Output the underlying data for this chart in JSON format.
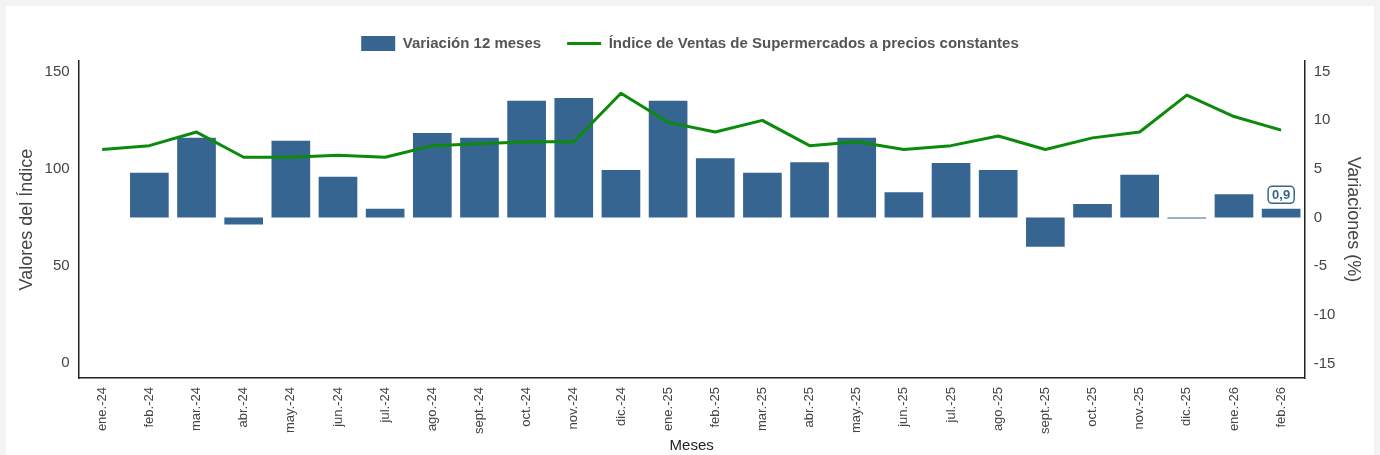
{
  "chart_data": {
    "type": "bar",
    "xlabel": "Meses",
    "ylabel": "Valores del Índice",
    "y2label": "Variaciones (%)",
    "categories": [
      "ene.-24",
      "feb.-24",
      "mar.-24",
      "abr.-24",
      "may.-24",
      "jun.-24",
      "jul.-24",
      "ago.-24",
      "sept.-24",
      "oct.-24",
      "nov.-24",
      "dic.-24",
      "ene.-25",
      "feb.-25",
      "mar.-25",
      "abr.-25",
      "may.-25",
      "jun.-25",
      "jul.-25",
      "ago.-25",
      "sept.-25",
      "oct.-25",
      "nov.-25",
      "dic.-25",
      "ene.-26",
      "feb.-26"
    ],
    "series": [
      {
        "name": "Variación 12 meses",
        "axis": "y2",
        "color": "#366591",
        "values": [
          null,
          4.6,
          8.2,
          -0.7,
          7.9,
          4.2,
          0.9,
          8.7,
          8.2,
          12.0,
          12.3,
          4.9,
          12.0,
          6.1,
          4.6,
          5.7,
          8.2,
          2.6,
          5.6,
          4.9,
          -3.0,
          1.4,
          4.4,
          -0.1,
          2.4,
          0.9
        ],
        "value_labels": [
          null,
          null,
          null,
          null,
          null,
          null,
          null,
          null,
          null,
          null,
          null,
          null,
          null,
          null,
          null,
          null,
          null,
          null,
          null,
          null,
          null,
          null,
          null,
          null,
          null,
          "0,9"
        ]
      },
      {
        "name": "Índice de Ventas de Supermercados a precios constantes",
        "type": "line",
        "color": "#0b8a0b",
        "values": [
          110,
          112,
          119,
          106,
          106,
          107,
          106,
          112,
          113,
          114,
          114,
          139,
          124,
          119,
          125,
          112,
          114,
          110,
          112,
          117,
          110,
          116,
          119,
          138,
          127,
          120
        ]
      }
    ],
    "ylim": [
      -7.7,
      155.6
    ],
    "yticks": [
      0,
      50,
      100,
      150
    ],
    "y2lim": [
      -16.5,
      16.1
    ],
    "y2ticks": [
      -15,
      -10,
      -5,
      0,
      5,
      10,
      15
    ],
    "grid": false,
    "legend": "top",
    "marker": "none",
    "line_style": "solid"
  }
}
